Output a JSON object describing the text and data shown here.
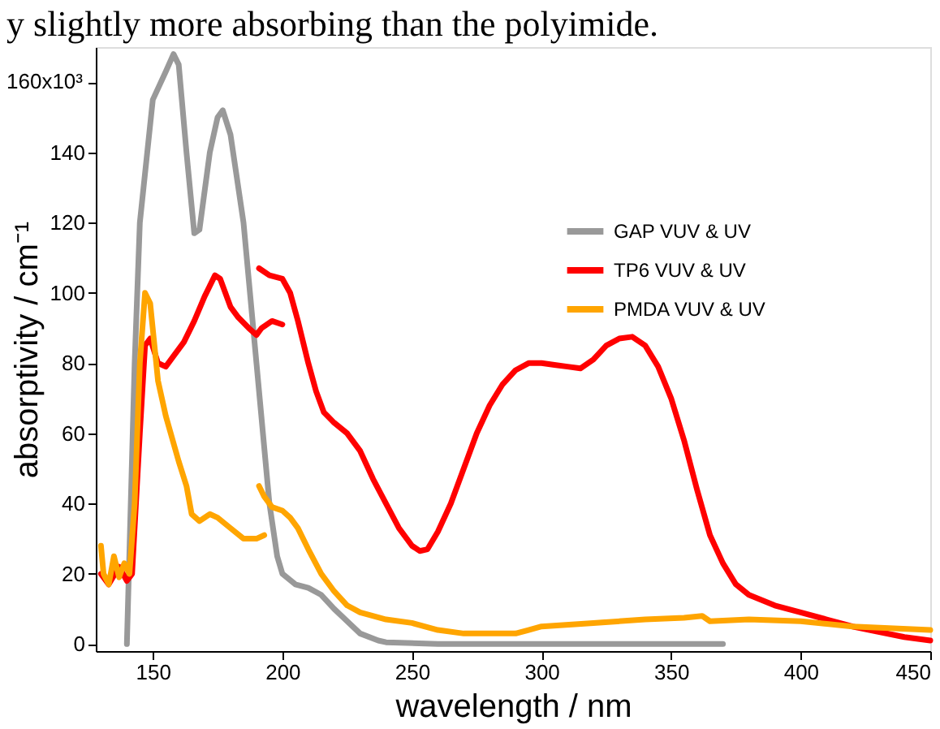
{
  "chart_data": {
    "type": "line",
    "xlabel": "wavelength / nm",
    "ylabel": "absorptivity / cm⁻¹",
    "annotations": [
      "y slightly more absorbing than the polyimide.",
      "160x10³"
    ],
    "xlim": [
      128,
      450
    ],
    "xticks": [
      150,
      200,
      250,
      300,
      350,
      400,
      450
    ],
    "ylim": [
      -2,
      170
    ],
    "yticks": [
      0,
      20,
      40,
      60,
      80,
      100,
      120,
      140,
      {
        "value": 160,
        "label": null
      }
    ],
    "grid": false,
    "legend": "top right",
    "marker": "none",
    "line_style": "solid",
    "series": [
      {
        "name": "GAP VUV & UV",
        "color": "#999999",
        "x": [
          140,
          143,
          145,
          150,
          155,
          158,
          160,
          163,
          166,
          168,
          172,
          175,
          177,
          180,
          185,
          190,
          195,
          198,
          200,
          205,
          210,
          215,
          220,
          230,
          237,
          240,
          260,
          300,
          370
        ],
        "values": [
          0,
          80,
          120,
          155,
          163,
          168,
          165,
          140,
          117,
          118,
          140,
          150,
          152,
          145,
          120,
          80,
          40,
          25,
          20,
          17,
          16,
          14,
          10,
          3,
          1,
          0.5,
          0,
          0,
          0
        ]
      },
      {
        "name": "TP6 VUV & UV",
        "color": "#ff0000",
        "x": [
          130,
          133,
          137,
          140,
          142,
          145,
          147,
          149,
          152,
          155,
          158,
          162,
          166,
          170,
          174,
          176,
          180,
          183,
          187,
          190,
          192,
          196,
          200,
          null,
          191,
          195,
          200,
          203,
          206,
          210,
          213,
          216,
          220,
          225,
          230,
          235,
          240,
          245,
          250,
          253,
          256,
          260,
          265,
          270,
          275,
          280,
          285,
          290,
          295,
          300,
          305,
          310,
          315,
          320,
          325,
          330,
          335,
          340,
          345,
          350,
          355,
          360,
          365,
          370,
          375,
          380,
          390,
          400,
          410,
          420,
          430,
          440,
          450
        ],
        "values": [
          20,
          17,
          22,
          18,
          20,
          60,
          85,
          87,
          80,
          79,
          82,
          86,
          92,
          99,
          105,
          104,
          96,
          93,
          90,
          88,
          90,
          92,
          91,
          null,
          107,
          105,
          104,
          100,
          92,
          80,
          72,
          66,
          63,
          60,
          55,
          47,
          40,
          33,
          28,
          26.5,
          27,
          32,
          40,
          50,
          60,
          68,
          74,
          78,
          80,
          80,
          79.5,
          79,
          78.5,
          81,
          85,
          87,
          87.5,
          85,
          79,
          70,
          58,
          44,
          31,
          23,
          17,
          14,
          11,
          9,
          7,
          5,
          3.5,
          2,
          1
        ]
      },
      {
        "name": "PMDA VUV & UV",
        "color": "#ffa500",
        "x": [
          130,
          131,
          133,
          135,
          137,
          139,
          141,
          143,
          145,
          147,
          149,
          152,
          155,
          160,
          163,
          165,
          168,
          172,
          175,
          180,
          185,
          190,
          193,
          null,
          191,
          193,
          196,
          200,
          203,
          206,
          210,
          215,
          220,
          225,
          230,
          240,
          250,
          260,
          270,
          280,
          290,
          295,
          300,
          320,
          340,
          355,
          362,
          365,
          380,
          400,
          420,
          450
        ],
        "values": [
          28,
          20,
          17,
          25,
          19,
          23,
          20,
          40,
          80,
          100,
          97,
          75,
          65,
          52,
          45,
          37,
          35,
          37,
          36,
          33,
          30,
          30,
          31,
          null,
          45,
          42,
          39,
          38,
          36,
          33,
          27,
          20,
          15,
          11,
          9,
          7,
          6,
          4,
          3,
          3,
          3,
          4,
          5,
          6,
          7,
          7.5,
          8,
          6.5,
          7,
          6.5,
          5,
          4
        ]
      }
    ]
  }
}
